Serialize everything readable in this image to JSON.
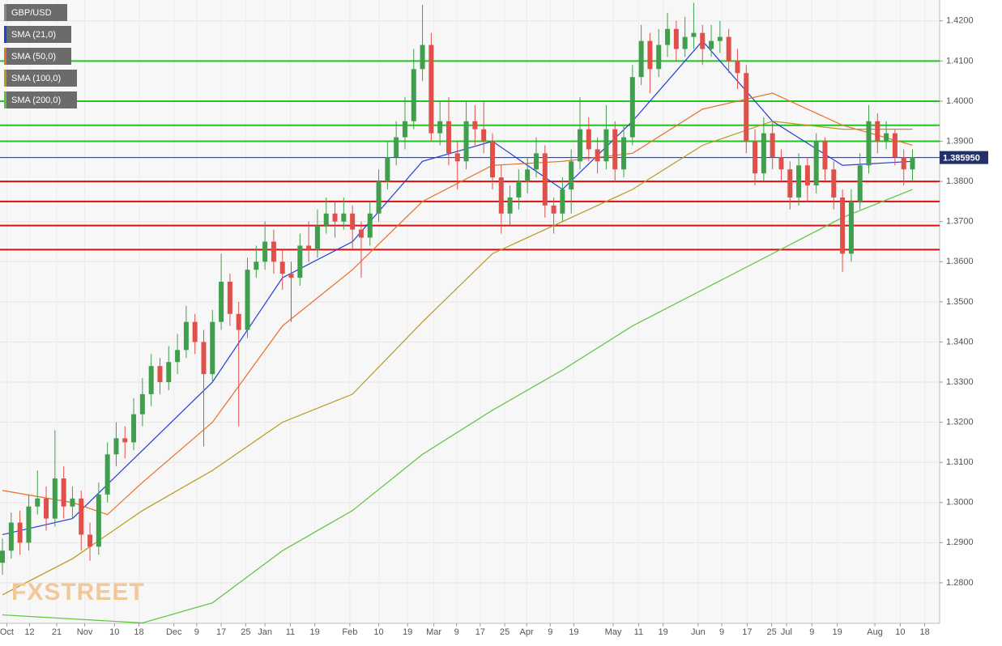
{
  "chart_data": {
    "type": "candlestick",
    "title": "GBP/USD",
    "logo": "FXSTREET",
    "up_color": "#3f9f4c",
    "down_color": "#e0504a",
    "ylim": [
      1.2699,
      1.4252
    ],
    "xlim": [
      -0.28,
      107.1
    ],
    "grid": true,
    "yticks": [
      {
        "value": 1.28,
        "label": "1.2800"
      },
      {
        "value": 1.29,
        "label": "1.2900"
      },
      {
        "value": 1.3,
        "label": "1.3000"
      },
      {
        "value": 1.31,
        "label": "1.3100"
      },
      {
        "value": 1.32,
        "label": "1.3200"
      },
      {
        "value": 1.33,
        "label": "1.3300"
      },
      {
        "value": 1.34,
        "label": "1.3400"
      },
      {
        "value": 1.35,
        "label": "1.3500"
      },
      {
        "value": 1.36,
        "label": "1.3600"
      },
      {
        "value": 1.37,
        "label": "1.3700"
      },
      {
        "value": 1.38,
        "label": "1.3800"
      },
      {
        "value": 1.39,
        "label": "1.3900"
      },
      {
        "value": 1.4,
        "label": "1.4000"
      },
      {
        "value": 1.41,
        "label": "1.4100"
      },
      {
        "value": 1.42,
        "label": "1.4200"
      }
    ],
    "xticks": [
      {
        "value": 0.5,
        "label": "Oct"
      },
      {
        "value": 3.1,
        "label": "12"
      },
      {
        "value": 6.2,
        "label": "21"
      },
      {
        "value": 9.4,
        "label": "Nov"
      },
      {
        "value": 12.8,
        "label": "10"
      },
      {
        "value": 15.6,
        "label": "18"
      },
      {
        "value": 19.6,
        "label": "Dec"
      },
      {
        "value": 22.2,
        "label": "9"
      },
      {
        "value": 25.0,
        "label": "17"
      },
      {
        "value": 27.8,
        "label": "25"
      },
      {
        "value": 30.0,
        "label": "Jan"
      },
      {
        "value": 32.9,
        "label": "11"
      },
      {
        "value": 35.7,
        "label": "19"
      },
      {
        "value": 39.7,
        "label": "Feb"
      },
      {
        "value": 43.0,
        "label": "10"
      },
      {
        "value": 46.3,
        "label": "19"
      },
      {
        "value": 49.3,
        "label": "Mar"
      },
      {
        "value": 51.9,
        "label": "9"
      },
      {
        "value": 54.6,
        "label": "17"
      },
      {
        "value": 57.4,
        "label": "25"
      },
      {
        "value": 59.9,
        "label": "Apr"
      },
      {
        "value": 62.6,
        "label": "9"
      },
      {
        "value": 65.3,
        "label": "19"
      },
      {
        "value": 69.8,
        "label": "May"
      },
      {
        "value": 72.7,
        "label": "11"
      },
      {
        "value": 75.5,
        "label": "19"
      },
      {
        "value": 79.5,
        "label": "Jun"
      },
      {
        "value": 82.2,
        "label": "9"
      },
      {
        "value": 85.1,
        "label": "17"
      },
      {
        "value": 87.9,
        "label": "25"
      },
      {
        "value": 89.6,
        "label": "Jul"
      },
      {
        "value": 92.5,
        "label": "9"
      },
      {
        "value": 95.4,
        "label": "19"
      },
      {
        "value": 99.7,
        "label": "Aug"
      },
      {
        "value": 102.6,
        "label": "10"
      },
      {
        "value": 105.4,
        "label": "18"
      }
    ],
    "last_price": {
      "value": 1.38595,
      "label": "1.385950"
    },
    "levels": [
      {
        "value": 1.41,
        "color": "#22c422"
      },
      {
        "value": 1.4,
        "color": "#22c422"
      },
      {
        "value": 1.394,
        "color": "#22c422"
      },
      {
        "value": 1.39,
        "color": "#22c422"
      },
      {
        "value": 1.38,
        "color": "#d81010"
      },
      {
        "value": 1.375,
        "color": "#d81010"
      },
      {
        "value": 1.369,
        "color": "#d81010"
      },
      {
        "value": 1.363,
        "color": "#d81010"
      }
    ],
    "candles": [
      [
        1.285,
        1.291,
        1.282,
        1.288
      ],
      [
        1.288,
        1.2975,
        1.286,
        1.295
      ],
      [
        1.295,
        1.298,
        1.287,
        1.29
      ],
      [
        1.29,
        1.302,
        1.288,
        1.299
      ],
      [
        1.299,
        1.308,
        1.297,
        1.301
      ],
      [
        1.301,
        1.304,
        1.293,
        1.296
      ],
      [
        1.296,
        1.318,
        1.294,
        1.306
      ],
      [
        1.306,
        1.309,
        1.296,
        1.299
      ],
      [
        1.299,
        1.304,
        1.296,
        1.301
      ],
      [
        1.301,
        1.303,
        1.288,
        1.292
      ],
      [
        1.292,
        1.295,
        1.2855,
        1.289
      ],
      [
        1.289,
        1.305,
        1.287,
        1.302
      ],
      [
        1.302,
        1.315,
        1.3,
        1.312
      ],
      [
        1.312,
        1.32,
        1.309,
        1.316
      ],
      [
        1.316,
        1.319,
        1.311,
        1.315
      ],
      [
        1.315,
        1.326,
        1.313,
        1.322
      ],
      [
        1.322,
        1.331,
        1.319,
        1.327
      ],
      [
        1.327,
        1.337,
        1.324,
        1.334
      ],
      [
        1.334,
        1.336,
        1.327,
        1.33
      ],
      [
        1.33,
        1.339,
        1.328,
        1.335
      ],
      [
        1.335,
        1.342,
        1.332,
        1.338
      ],
      [
        1.338,
        1.349,
        1.336,
        1.345
      ],
      [
        1.345,
        1.347,
        1.337,
        1.34
      ],
      [
        1.34,
        1.343,
        1.314,
        1.332
      ],
      [
        1.332,
        1.348,
        1.33,
        1.345
      ],
      [
        1.345,
        1.362,
        1.343,
        1.355
      ],
      [
        1.355,
        1.357,
        1.344,
        1.347
      ],
      [
        1.347,
        1.35,
        1.319,
        1.343
      ],
      [
        1.343,
        1.361,
        1.341,
        1.358
      ],
      [
        1.358,
        1.364,
        1.356,
        1.36
      ],
      [
        1.36,
        1.37,
        1.358,
        1.365
      ],
      [
        1.365,
        1.368,
        1.357,
        1.36
      ],
      [
        1.36,
        1.363,
        1.353,
        1.357
      ],
      [
        1.357,
        1.36,
        1.345,
        1.356
      ],
      [
        1.356,
        1.367,
        1.354,
        1.364
      ],
      [
        1.364,
        1.37,
        1.36,
        1.363
      ],
      [
        1.363,
        1.373,
        1.361,
        1.369
      ],
      [
        1.369,
        1.376,
        1.367,
        1.372
      ],
      [
        1.372,
        1.375,
        1.366,
        1.37
      ],
      [
        1.37,
        1.376,
        1.368,
        1.372
      ],
      [
        1.372,
        1.374,
        1.363,
        1.368
      ],
      [
        1.368,
        1.37,
        1.356,
        1.366
      ],
      [
        1.366,
        1.375,
        1.364,
        1.372
      ],
      [
        1.372,
        1.383,
        1.37,
        1.38
      ],
      [
        1.38,
        1.39,
        1.378,
        1.386
      ],
      [
        1.386,
        1.395,
        1.384,
        1.391
      ],
      [
        1.391,
        1.401,
        1.388,
        1.395
      ],
      [
        1.395,
        1.413,
        1.393,
        1.408
      ],
      [
        1.408,
        1.424,
        1.405,
        1.414
      ],
      [
        1.414,
        1.417,
        1.39,
        1.392
      ],
      [
        1.392,
        1.4,
        1.389,
        1.395
      ],
      [
        1.395,
        1.401,
        1.384,
        1.387
      ],
      [
        1.387,
        1.39,
        1.378,
        1.385
      ],
      [
        1.385,
        1.4,
        1.383,
        1.395
      ],
      [
        1.395,
        1.399,
        1.389,
        1.393
      ],
      [
        1.393,
        1.4,
        1.387,
        1.39
      ],
      [
        1.39,
        1.392,
        1.378,
        1.381
      ],
      [
        1.381,
        1.384,
        1.367,
        1.372
      ],
      [
        1.372,
        1.379,
        1.369,
        1.376
      ],
      [
        1.376,
        1.383,
        1.373,
        1.38
      ],
      [
        1.38,
        1.386,
        1.377,
        1.383
      ],
      [
        1.383,
        1.391,
        1.381,
        1.387
      ],
      [
        1.387,
        1.389,
        1.371,
        1.374
      ],
      [
        1.374,
        1.376,
        1.367,
        1.372
      ],
      [
        1.372,
        1.381,
        1.37,
        1.378
      ],
      [
        1.378,
        1.388,
        1.372,
        1.385
      ],
      [
        1.385,
        1.401,
        1.383,
        1.393
      ],
      [
        1.393,
        1.396,
        1.385,
        1.388
      ],
      [
        1.388,
        1.391,
        1.382,
        1.385
      ],
      [
        1.385,
        1.399,
        1.383,
        1.393
      ],
      [
        1.393,
        1.395,
        1.38,
        1.383
      ],
      [
        1.383,
        1.394,
        1.381,
        1.391
      ],
      [
        1.391,
        1.409,
        1.389,
        1.406
      ],
      [
        1.406,
        1.419,
        1.404,
        1.415
      ],
      [
        1.415,
        1.417,
        1.402,
        1.408
      ],
      [
        1.408,
        1.418,
        1.406,
        1.414
      ],
      [
        1.414,
        1.422,
        1.411,
        1.418
      ],
      [
        1.418,
        1.42,
        1.41,
        1.413
      ],
      [
        1.413,
        1.421,
        1.411,
        1.416
      ],
      [
        1.416,
        1.4245,
        1.413,
        1.417
      ],
      [
        1.417,
        1.419,
        1.409,
        1.413
      ],
      [
        1.413,
        1.419,
        1.411,
        1.415
      ],
      [
        1.415,
        1.42,
        1.412,
        1.416
      ],
      [
        1.416,
        1.418,
        1.407,
        1.41
      ],
      [
        1.41,
        1.413,
        1.403,
        1.407
      ],
      [
        1.407,
        1.409,
        1.387,
        1.39
      ],
      [
        1.39,
        1.393,
        1.379,
        1.382
      ],
      [
        1.382,
        1.396,
        1.38,
        1.392
      ],
      [
        1.392,
        1.395,
        1.383,
        1.386
      ],
      [
        1.386,
        1.388,
        1.38,
        1.383
      ],
      [
        1.383,
        1.385,
        1.373,
        1.376
      ],
      [
        1.376,
        1.387,
        1.374,
        1.384
      ],
      [
        1.384,
        1.386,
        1.375,
        1.379
      ],
      [
        1.379,
        1.392,
        1.377,
        1.39
      ],
      [
        1.39,
        1.391,
        1.38,
        1.383
      ],
      [
        1.383,
        1.385,
        1.373,
        1.376
      ],
      [
        1.376,
        1.378,
        1.3575,
        1.362
      ],
      [
        1.362,
        1.378,
        1.36,
        1.375
      ],
      [
        1.375,
        1.387,
        1.373,
        1.384
      ],
      [
        1.384,
        1.399,
        1.382,
        1.395
      ],
      [
        1.395,
        1.397,
        1.387,
        1.39
      ],
      [
        1.39,
        1.395,
        1.388,
        1.392
      ],
      [
        1.392,
        1.393,
        1.384,
        1.386
      ],
      [
        1.386,
        1.388,
        1.379,
        1.383
      ],
      [
        1.383,
        1.388,
        1.38,
        1.386
      ]
    ],
    "series": [
      {
        "name": "SMA (21,0)",
        "color": "#1f3fd8",
        "x": [
          0,
          8,
          16,
          24,
          32,
          40,
          48,
          56,
          64,
          72,
          80,
          88,
          96,
          104
        ],
        "values": [
          1.292,
          1.296,
          1.313,
          1.33,
          1.356,
          1.365,
          1.385,
          1.39,
          1.378,
          1.395,
          1.415,
          1.395,
          1.384,
          1.385
        ]
      },
      {
        "name": "SMA (50,0)",
        "color": "#e8702a",
        "x": [
          0,
          8,
          12,
          16,
          24,
          32,
          40,
          48,
          56,
          64,
          72,
          80,
          88,
          96,
          104
        ],
        "values": [
          1.303,
          1.3,
          1.297,
          1.305,
          1.32,
          1.344,
          1.358,
          1.375,
          1.384,
          1.385,
          1.387,
          1.398,
          1.402,
          1.394,
          1.389
        ]
      },
      {
        "name": "SMA (100,0)",
        "color": "#b59a1c",
        "x": [
          0,
          8,
          16,
          24,
          32,
          40,
          48,
          56,
          64,
          72,
          80,
          88,
          96,
          104
        ],
        "values": [
          1.277,
          1.286,
          1.298,
          1.308,
          1.32,
          1.327,
          1.345,
          1.362,
          1.37,
          1.378,
          1.389,
          1.395,
          1.393,
          1.393
        ]
      },
      {
        "name": "SMA (200,0)",
        "color": "#5cc23a",
        "x": [
          0,
          8,
          16,
          24,
          32,
          40,
          48,
          56,
          64,
          72,
          80,
          88,
          96,
          104
        ],
        "values": [
          1.272,
          1.271,
          1.27,
          1.275,
          1.288,
          1.298,
          1.312,
          1.323,
          1.333,
          1.344,
          1.353,
          1.362,
          1.371,
          1.378
        ]
      }
    ]
  }
}
